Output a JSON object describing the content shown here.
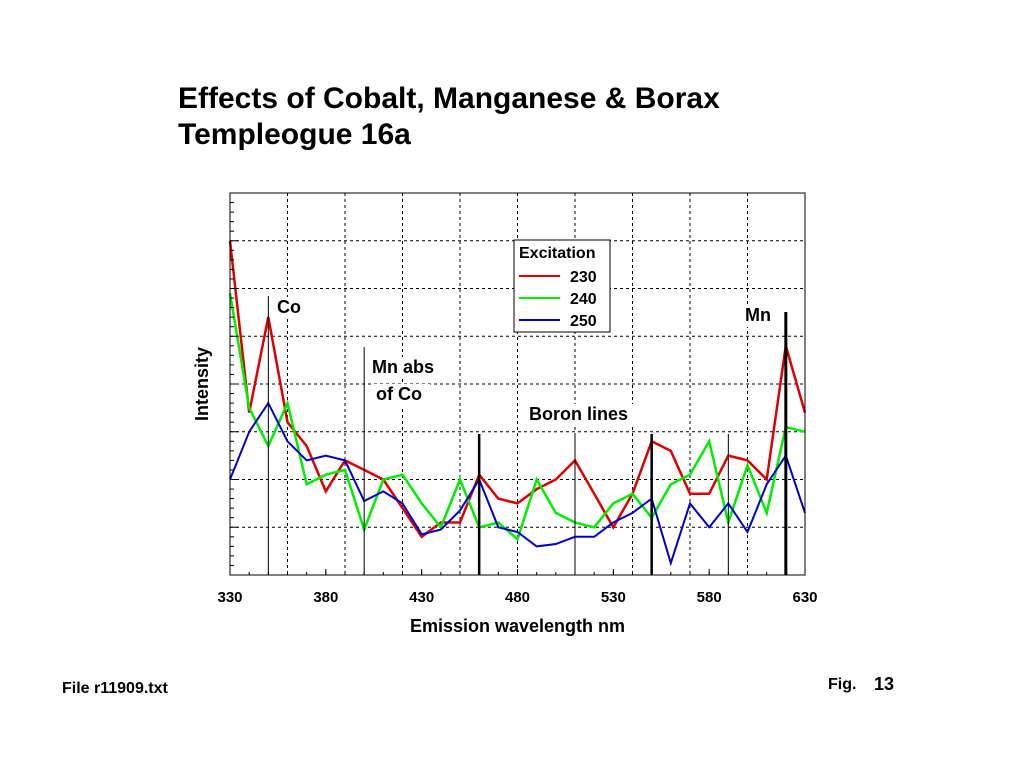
{
  "header": {
    "title_line1": "Effects of Cobalt, Manganese & Borax",
    "title_line2": "Templeogue 16a"
  },
  "footer": {
    "file_label": "File r11909.txt",
    "fig_label": "Fig.",
    "fig_number": "13"
  },
  "chart_data": {
    "type": "line",
    "title": "Effects of Cobalt, Manganese & Borax Templeogue 16a",
    "xlabel": "Emission wavelength  nm",
    "ylabel": "Intensity",
    "xlim": [
      330,
      630
    ],
    "ylim": [
      0,
      8
    ],
    "xticks": [
      330,
      380,
      430,
      480,
      530,
      580,
      630
    ],
    "grid": true,
    "legend": {
      "title": "Excitation",
      "position": "top-center"
    },
    "x": [
      330,
      340,
      350,
      360,
      370,
      380,
      390,
      400,
      410,
      420,
      430,
      440,
      450,
      460,
      470,
      480,
      490,
      500,
      510,
      520,
      530,
      540,
      550,
      560,
      570,
      580,
      590,
      600,
      610,
      620,
      630
    ],
    "series": [
      {
        "name": "230",
        "color": "#dd0000",
        "values": [
          7.0,
          3.4,
          5.4,
          3.2,
          2.7,
          1.75,
          2.4,
          2.2,
          2.0,
          1.4,
          0.8,
          1.1,
          1.1,
          2.1,
          1.6,
          1.5,
          1.8,
          2.0,
          2.4,
          1.7,
          1.0,
          1.7,
          2.8,
          2.6,
          1.7,
          1.7,
          2.5,
          2.4,
          2.0,
          4.8,
          3.4
        ]
      },
      {
        "name": "240",
        "color": "#00ee00",
        "values": [
          5.9,
          3.5,
          2.7,
          3.6,
          1.9,
          2.1,
          2.2,
          0.95,
          2.0,
          2.1,
          1.5,
          1.0,
          2.0,
          1.0,
          1.1,
          0.75,
          2.0,
          1.3,
          1.1,
          1.0,
          1.5,
          1.7,
          1.2,
          1.9,
          2.1,
          2.8,
          1.1,
          2.3,
          1.3,
          3.1,
          3.0
        ]
      },
      {
        "name": "250",
        "color": "#0000cc",
        "values": [
          2.0,
          3.0,
          3.6,
          2.8,
          2.4,
          2.5,
          2.4,
          1.55,
          1.75,
          1.5,
          0.85,
          0.95,
          1.35,
          2.0,
          1.0,
          0.9,
          0.6,
          0.65,
          0.8,
          0.8,
          1.1,
          1.3,
          1.6,
          0.25,
          1.5,
          1.0,
          1.5,
          0.9,
          1.9,
          2.5,
          1.3
        ]
      }
    ],
    "annotations": [
      {
        "label": "Co",
        "x": 350
      },
      {
        "label": "Mn abs",
        "label2": "of Co",
        "x": 400
      },
      {
        "label": "Boron lines",
        "x": [
          460,
          510,
          550,
          590
        ]
      },
      {
        "label": "Mn",
        "x": 620
      }
    ]
  }
}
